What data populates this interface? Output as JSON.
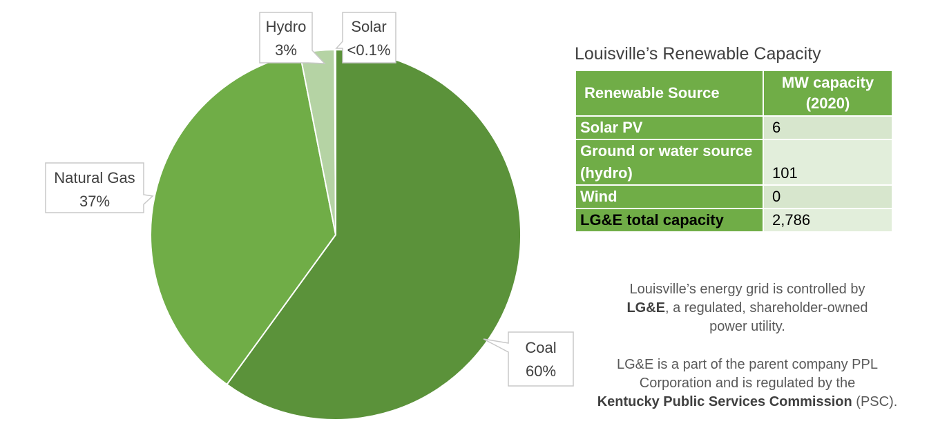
{
  "chart_data": {
    "type": "pie",
    "slices": [
      {
        "label": "Coal",
        "value_label": "60%",
        "value": 60.0,
        "color": "#5b923a"
      },
      {
        "label": "Natural Gas",
        "value_label": "37%",
        "value": 36.9,
        "color": "#70ad47"
      },
      {
        "label": "Hydro",
        "value_label": "3%",
        "value": 3.0,
        "color": "#b5d3a4"
      },
      {
        "label": "Solar",
        "value_label": "<0.1%",
        "value": 0.1,
        "color": "#e2eedb"
      }
    ]
  },
  "table": {
    "title": "Louisville’s Renewable Capacity",
    "header_source": "Renewable Source",
    "header_capacity_line1": "MW capacity",
    "header_capacity_line2": "(2020)",
    "rows": [
      {
        "source": "Solar PV",
        "value": "6"
      },
      {
        "source": "Ground or water source (hydro)",
        "value": "101"
      },
      {
        "source": "Wind",
        "value": "0"
      },
      {
        "source": "LG&E total capacity",
        "value": "2,786"
      }
    ]
  },
  "notes": {
    "p1_line1": "Louisville’s energy grid is controlled by",
    "p1_bold": "LG&E",
    "p1_rest": ", a regulated, shareholder-owned",
    "p1_line3": "power utility.",
    "p2_line1": "LG&E is a part of the parent company PPL",
    "p2_line2": "Corporation and is regulated by the",
    "p2_bold": "Kentucky Public Services Commission",
    "p2_rest": " (PSC)."
  }
}
